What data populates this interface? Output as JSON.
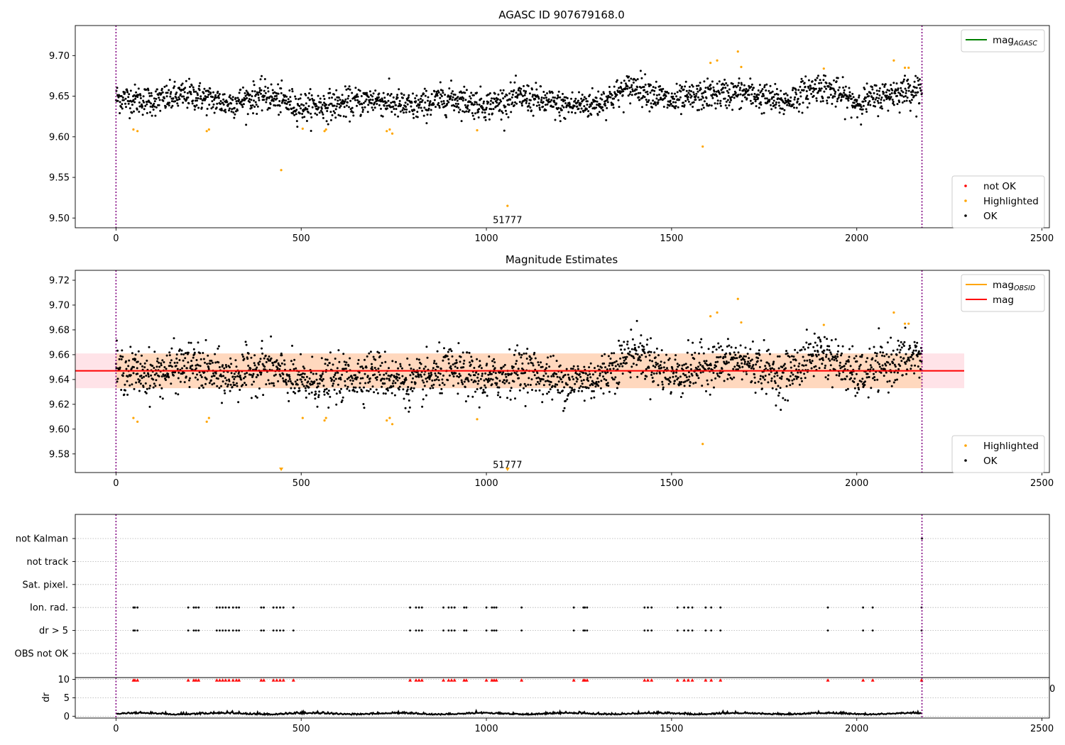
{
  "chart_data": [
    {
      "type": "scatter",
      "title": "AGASC ID 907679168.0",
      "xlim": [
        -110,
        2520
      ],
      "ylim": [
        9.488,
        9.737
      ],
      "xticks": [
        0,
        500,
        1000,
        1500,
        2000,
        2500
      ],
      "yticks": [
        9.5,
        9.55,
        9.6,
        9.65,
        9.7
      ],
      "ytick_labels": [
        "9.50",
        "9.55",
        "9.60",
        "9.65",
        "9.70"
      ],
      "vlines": [
        0,
        2176
      ],
      "annotation": {
        "text": "51777",
        "x": 1057,
        "y": 9.497
      },
      "legend_top": [
        {
          "label": "mag",
          "sub": "AGASC",
          "color": "#008000",
          "kind": "line"
        }
      ],
      "legend_bottom": [
        {
          "label": "not OK",
          "color": "#ff0000",
          "kind": "dot"
        },
        {
          "label": "Highlighted",
          "color": "#ffa500",
          "kind": "dot"
        },
        {
          "label": "OK",
          "color": "#000000",
          "kind": "dot"
        }
      ],
      "series": [
        {
          "name": "Highlighted",
          "color": "#ffa500",
          "x": [
            47,
            58,
            245,
            251,
            504,
            563,
            567,
            731,
            739,
            746,
            975,
            1057,
            1584,
            1605,
            1623,
            1679,
            1688,
            1911,
            2100,
            2130,
            2140
          ],
          "y": [
            9.609,
            9.607,
            9.607,
            9.609,
            9.61,
            9.607,
            9.609,
            9.607,
            9.609,
            9.604,
            9.608,
            9.515,
            9.588,
            9.691,
            9.694,
            9.705,
            9.686,
            9.684,
            9.694,
            9.685,
            9.685
          ]
        },
        {
          "name": "Highlighted",
          "color": "#ffa500",
          "x": [
            446
          ],
          "y": [
            9.559
          ]
        },
        {
          "name": "OK",
          "color": "#000000",
          "generated": true,
          "n": 2170,
          "x_range": [
            0,
            2176
          ],
          "noise": 0.009,
          "trend_x": [
            0,
            100,
            200,
            300,
            400,
            500,
            600,
            700,
            800,
            900,
            1000,
            1100,
            1200,
            1300,
            1400,
            1500,
            1600,
            1700,
            1800,
            1900,
            2000,
            2100,
            2176
          ],
          "trend_y": [
            9.648,
            9.644,
            9.652,
            9.641,
            9.651,
            9.637,
            9.64,
            9.646,
            9.636,
            9.648,
            9.639,
            9.649,
            9.638,
            9.641,
            9.663,
            9.643,
            9.652,
            9.654,
            9.642,
            9.663,
            9.642,
            9.654,
            9.66
          ]
        }
      ]
    },
    {
      "type": "scatter",
      "title": "Magnitude Estimates",
      "xlim": [
        -110,
        2520
      ],
      "ylim": [
        9.565,
        9.728
      ],
      "xticks": [
        0,
        500,
        1000,
        1500,
        2000,
        2500
      ],
      "yticks": [
        9.58,
        9.6,
        9.62,
        9.64,
        9.66,
        9.68,
        9.7,
        9.72
      ],
      "ytick_labels": [
        "9.58",
        "9.60",
        "9.62",
        "9.64",
        "9.66",
        "9.68",
        "9.70",
        "9.72"
      ],
      "vlines": [
        0,
        2176
      ],
      "annotation": {
        "text": "51777",
        "x": 1057,
        "y": 9.571
      },
      "mag_line": {
        "value": 9.647,
        "x_range": [
          -110,
          2290
        ],
        "color": "#ff0000"
      },
      "mag_band": {
        "low": 9.633,
        "high": 9.661,
        "x_range": [
          -110,
          2290
        ],
        "color": "#ffc0cb"
      },
      "obsid_band": {
        "low": 9.633,
        "high": 9.661,
        "x_range": [
          0,
          2176
        ],
        "color": "#ffa500"
      },
      "offscale_markers": {
        "x": [
          446,
          1057
        ],
        "color": "#ffa500"
      },
      "legend_top": [
        {
          "label": "mag",
          "sub": "OBSID",
          "color": "#ffa500",
          "kind": "line"
        },
        {
          "label": "mag",
          "sub": "",
          "color": "#ff0000",
          "kind": "line"
        }
      ],
      "legend_bottom": [
        {
          "label": "Highlighted",
          "color": "#ffa500",
          "kind": "dot"
        },
        {
          "label": "OK",
          "color": "#000000",
          "kind": "dot"
        }
      ],
      "series": [
        {
          "name": "Highlighted",
          "color": "#ffa500",
          "x": [
            47,
            58,
            245,
            251,
            504,
            563,
            567,
            731,
            739,
            746,
            975,
            1584,
            1605,
            1623,
            1679,
            1688,
            1911,
            2100,
            2130,
            2140
          ],
          "y": [
            9.609,
            9.606,
            9.606,
            9.609,
            9.609,
            9.607,
            9.609,
            9.607,
            9.609,
            9.604,
            9.608,
            9.588,
            9.691,
            9.694,
            9.705,
            9.686,
            9.684,
            9.694,
            9.685,
            9.685
          ]
        },
        {
          "name": "OK",
          "color": "#000000",
          "generated": true,
          "n": 2170,
          "x_range": [
            0,
            2176
          ],
          "noise": 0.009,
          "trend_x": [
            0,
            100,
            200,
            300,
            400,
            500,
            600,
            700,
            800,
            900,
            1000,
            1100,
            1200,
            1300,
            1400,
            1500,
            1600,
            1700,
            1800,
            1900,
            2000,
            2100,
            2176
          ],
          "trend_y": [
            9.648,
            9.644,
            9.652,
            9.641,
            9.651,
            9.637,
            9.64,
            9.646,
            9.636,
            9.648,
            9.639,
            9.649,
            9.638,
            9.641,
            9.663,
            9.643,
            9.652,
            9.654,
            9.642,
            9.663,
            9.642,
            9.654,
            9.66
          ]
        }
      ]
    },
    {
      "type": "scatter",
      "xlim": [
        -110,
        2520
      ],
      "categories": [
        "not Kalman",
        "not track",
        "Sat. pixel.",
        "Ion. rad.",
        "dr > 5",
        "OBS not OK"
      ],
      "vlines": [
        0,
        2176
      ],
      "series": [
        {
          "name": "not Kalman",
          "x": [
            2176
          ]
        },
        {
          "name": "not track",
          "x": []
        },
        {
          "name": "Sat. pixel.",
          "x": []
        },
        {
          "name": "Ion. rad.",
          "x": [
            47,
            51,
            58,
            195,
            210,
            216,
            223,
            272,
            280,
            288,
            296,
            305,
            316,
            325,
            332,
            392,
            399,
            425,
            434,
            443,
            452,
            479,
            794,
            810,
            818,
            826,
            884,
            898,
            906,
            914,
            940,
            946,
            1000,
            1015,
            1021,
            1027,
            1095,
            1236,
            1262,
            1266,
            1272,
            1427,
            1436,
            1446,
            1516,
            1534,
            1545,
            1556,
            1592,
            1607,
            1632,
            1922,
            2017,
            2043,
            2175
          ]
        },
        {
          "name": "dr > 5",
          "x": [
            47,
            51,
            58,
            195,
            210,
            216,
            223,
            272,
            280,
            288,
            296,
            305,
            316,
            325,
            332,
            392,
            399,
            425,
            434,
            443,
            452,
            479,
            794,
            810,
            818,
            826,
            884,
            898,
            906,
            914,
            940,
            946,
            1000,
            1015,
            1021,
            1027,
            1095,
            1236,
            1262,
            1266,
            1272,
            1427,
            1436,
            1446,
            1516,
            1534,
            1545,
            1556,
            1592,
            1607,
            1632,
            1922,
            2017,
            2043,
            2175
          ]
        },
        {
          "name": "OBS not OK",
          "x": []
        }
      ]
    },
    {
      "type": "line",
      "ylabel": "dr",
      "xlim": [
        -110,
        2520
      ],
      "ylim": [
        -0.5,
        10.5
      ],
      "xticks": [
        0,
        500,
        1000,
        1500,
        2000,
        2500
      ],
      "yticks": [
        0,
        5,
        10
      ],
      "vlines": [
        0,
        2176
      ],
      "clipped_x_label": "0",
      "capped_markers": {
        "value": 10,
        "color": "#ff0000",
        "x": [
          47,
          51,
          58,
          195,
          210,
          216,
          223,
          272,
          280,
          288,
          296,
          305,
          316,
          325,
          332,
          392,
          399,
          425,
          434,
          443,
          452,
          479,
          794,
          810,
          818,
          826,
          884,
          898,
          906,
          914,
          940,
          946,
          1000,
          1015,
          1021,
          1027,
          1095,
          1236,
          1262,
          1266,
          1272,
          1427,
          1436,
          1446,
          1516,
          1534,
          1545,
          1556,
          1592,
          1607,
          1632,
          1922,
          2017,
          2043,
          2175
        ]
      },
      "series": [
        {
          "name": "dr",
          "color": "#000000",
          "generated": true,
          "n": 2176,
          "x_range": [
            0,
            2176
          ],
          "base": 0.55,
          "amp": 0.35
        }
      ]
    }
  ]
}
